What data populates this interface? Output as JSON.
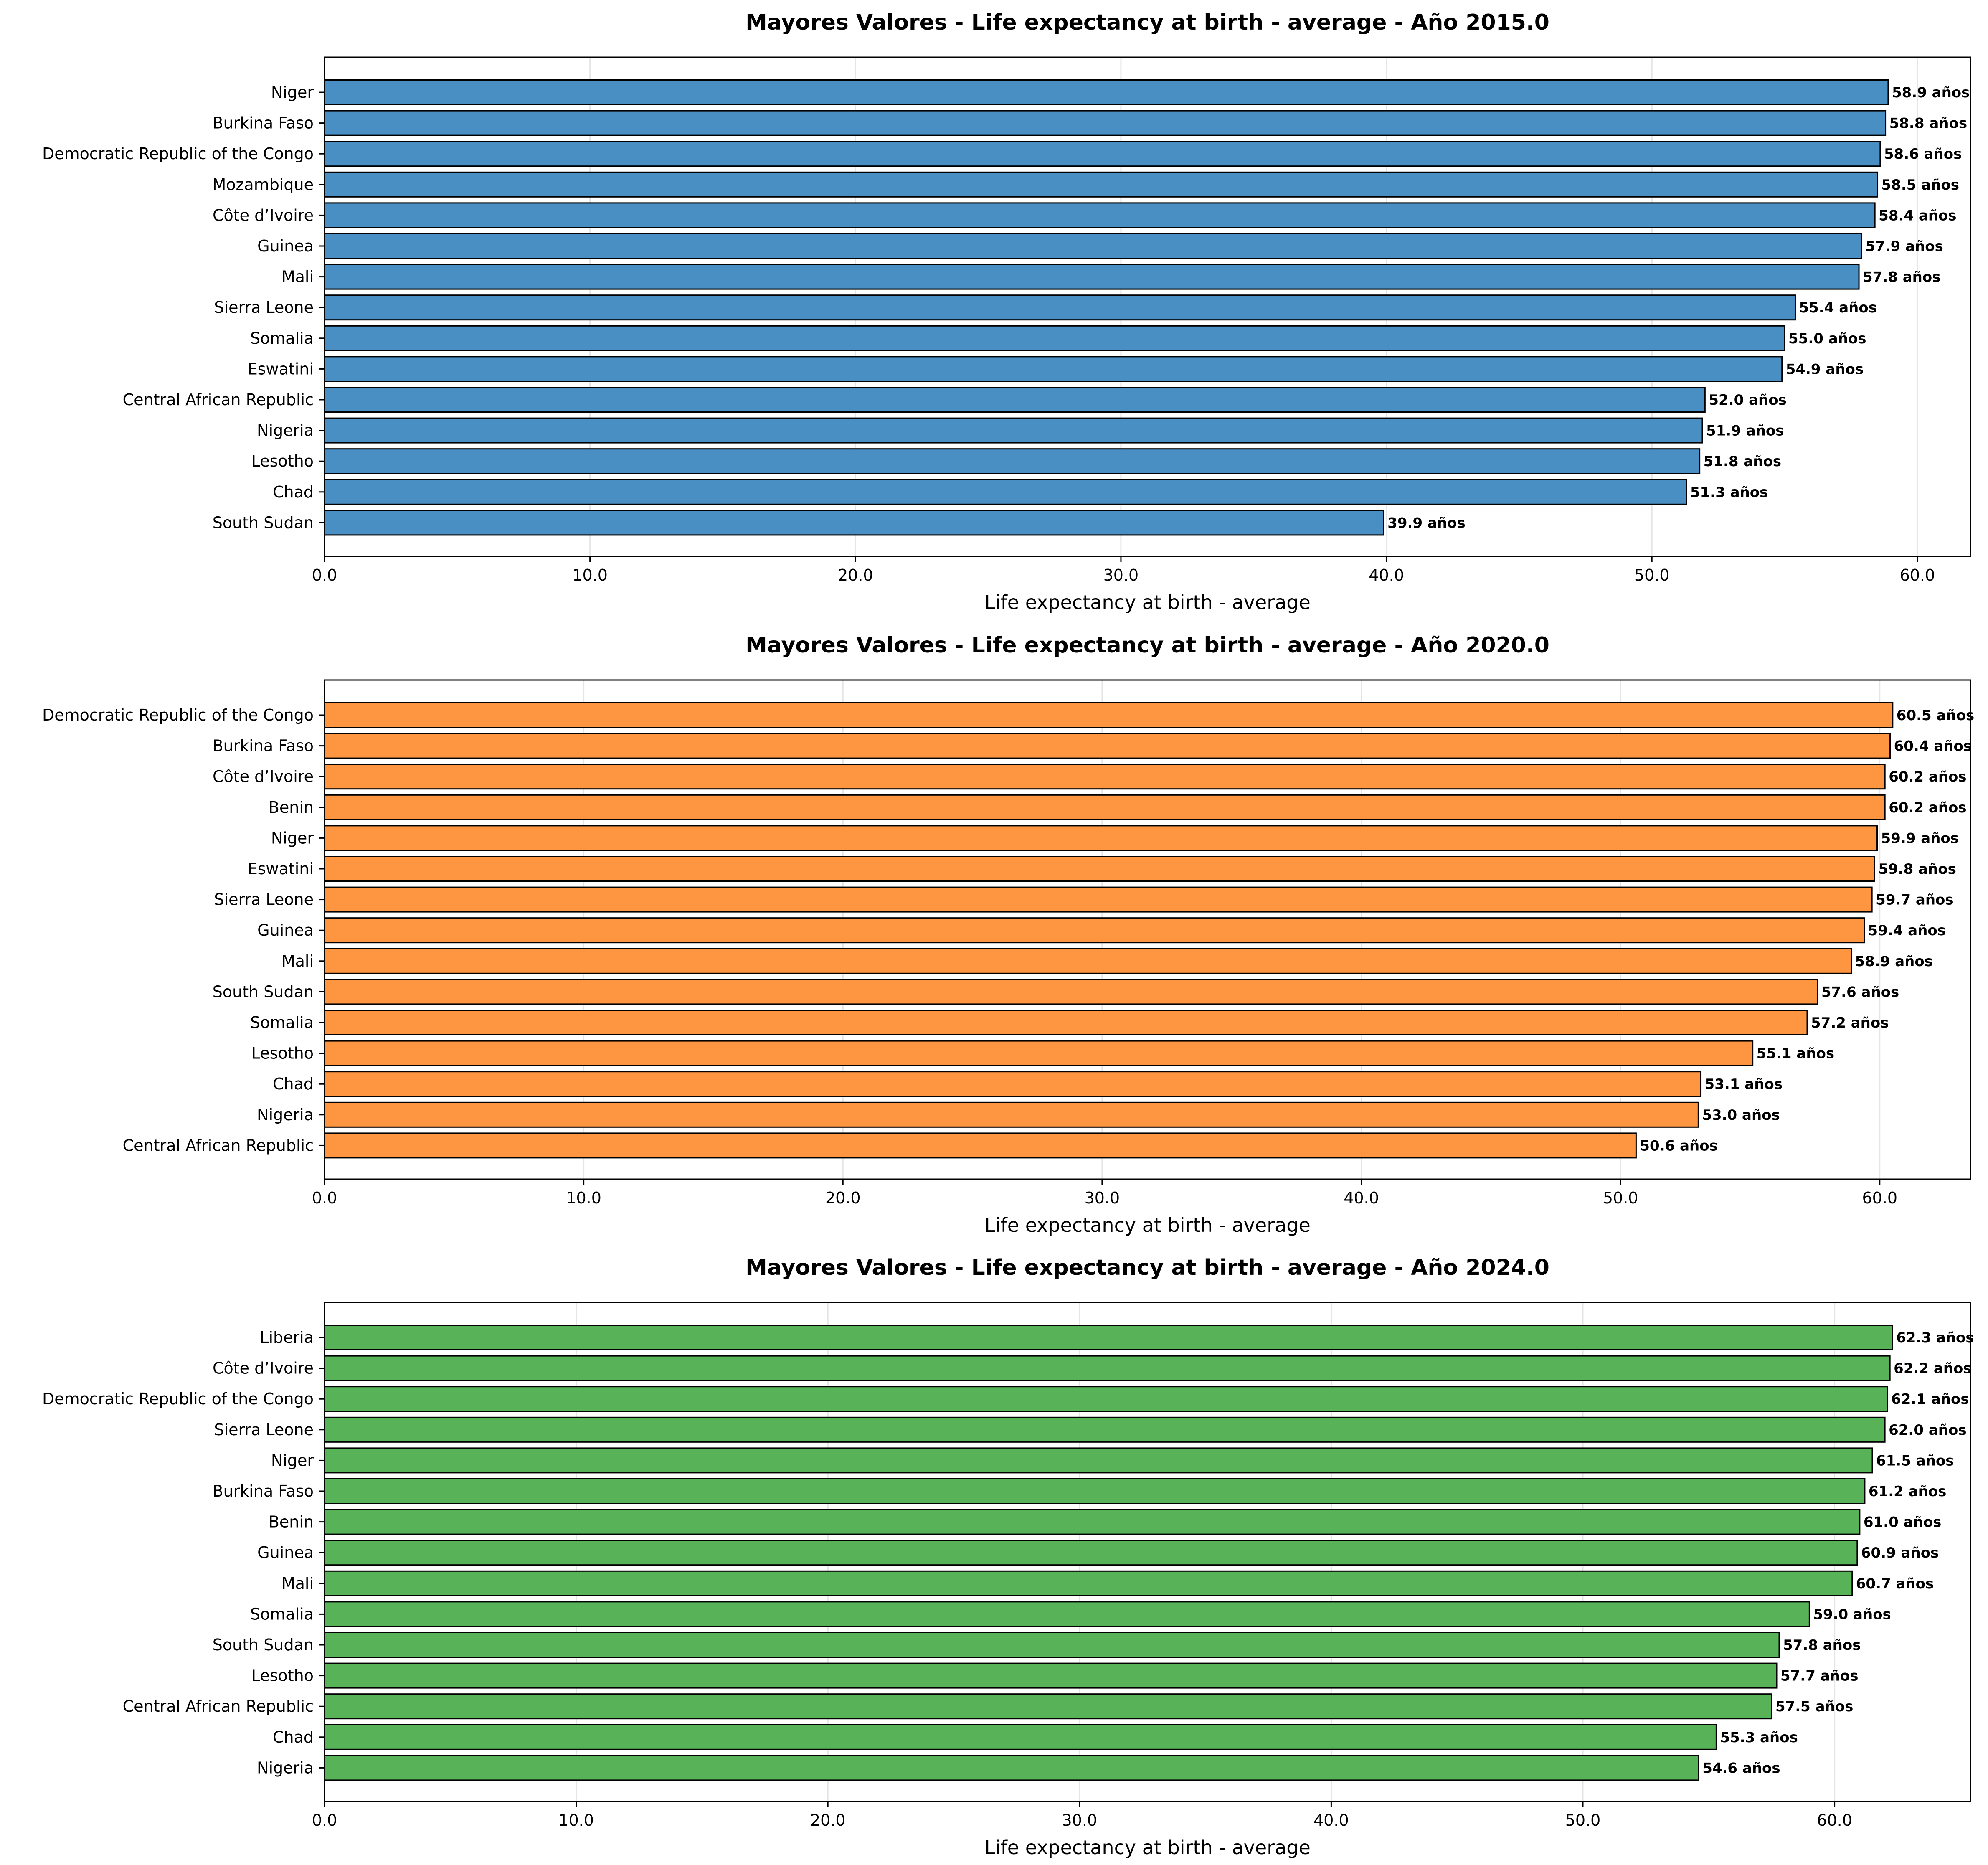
{
  "chart_data": [
    {
      "type": "bar",
      "orientation": "horizontal",
      "title": "Mayores Valores - Life expectancy at birth - average - Año 2015.0",
      "xlabel": "Life expectancy at birth - average",
      "ylabel": "",
      "color": "#4a8fc3",
      "xlim": [
        0,
        62
      ],
      "xticks": [
        "0.0",
        "10.0",
        "20.0",
        "30.0",
        "40.0",
        "50.0",
        "60.0"
      ],
      "grid": "x",
      "categories": [
        "Niger",
        "Burkina Faso",
        "Democratic Republic of the Congo",
        "Mozambique",
        "Côte d’Ivoire",
        "Guinea",
        "Mali",
        "Sierra Leone",
        "Somalia",
        "Eswatini",
        "Central African Republic",
        "Nigeria",
        "Lesotho",
        "Chad",
        "South Sudan"
      ],
      "values": [
        58.9,
        58.8,
        58.6,
        58.5,
        58.4,
        57.9,
        57.8,
        55.4,
        55.0,
        54.9,
        52.0,
        51.9,
        51.8,
        51.3,
        39.9
      ],
      "data_labels": [
        "58.9 años",
        "58.8 años",
        "58.6 años",
        "58.5 años",
        "58.4 años",
        "57.9 años",
        "57.8 años",
        "55.4 años",
        "55.0 años",
        "54.9 años",
        "52.0 años",
        "51.9 años",
        "51.8 años",
        "51.3 años",
        "39.9 años"
      ]
    },
    {
      "type": "bar",
      "orientation": "horizontal",
      "title": "Mayores Valores - Life expectancy at birth - average - Año 2020.0",
      "xlabel": "Life expectancy at birth - average",
      "ylabel": "",
      "color": "#fe9540",
      "xlim": [
        0,
        63.5
      ],
      "xticks": [
        "0.0",
        "10.0",
        "20.0",
        "30.0",
        "40.0",
        "50.0",
        "60.0"
      ],
      "grid": "x",
      "categories": [
        "Democratic Republic of the Congo",
        "Burkina Faso",
        "Côte d’Ivoire",
        "Benin",
        "Niger",
        "Eswatini",
        "Sierra Leone",
        "Guinea",
        "Mali",
        "South Sudan",
        "Somalia",
        "Lesotho",
        "Chad",
        "Nigeria",
        "Central African Republic"
      ],
      "values": [
        60.5,
        60.4,
        60.2,
        60.2,
        59.9,
        59.8,
        59.7,
        59.4,
        58.9,
        57.6,
        57.2,
        55.1,
        53.1,
        53.0,
        50.6
      ],
      "data_labels": [
        "60.5 años",
        "60.4 años",
        "60.2 años",
        "60.2 años",
        "59.9 años",
        "59.8 años",
        "59.7 años",
        "59.4 años",
        "58.9 años",
        "57.6 años",
        "57.2 años",
        "55.1 años",
        "53.1 años",
        "53.0 años",
        "50.6 años"
      ]
    },
    {
      "type": "bar",
      "orientation": "horizontal",
      "title": "Mayores Valores - Life expectancy at birth - average - Año 2024.0",
      "xlabel": "Life expectancy at birth - average",
      "ylabel": "",
      "color": "#58b358",
      "xlim": [
        0,
        65.4
      ],
      "xticks": [
        "0.0",
        "10.0",
        "20.0",
        "30.0",
        "40.0",
        "50.0",
        "60.0"
      ],
      "grid": "x",
      "categories": [
        "Liberia",
        "Côte d’Ivoire",
        "Democratic Republic of the Congo",
        "Sierra Leone",
        "Niger",
        "Burkina Faso",
        "Benin",
        "Guinea",
        "Mali",
        "Somalia",
        "South Sudan",
        "Lesotho",
        "Central African Republic",
        "Chad",
        "Nigeria"
      ],
      "values": [
        62.3,
        62.2,
        62.1,
        62.0,
        61.5,
        61.2,
        61.0,
        60.9,
        60.7,
        59.0,
        57.8,
        57.7,
        57.5,
        55.3,
        54.6
      ],
      "data_labels": [
        "62.3 años",
        "62.2 años",
        "62.1 años",
        "62.0 años",
        "61.5 años",
        "61.2 años",
        "61.0 años",
        "60.9 años",
        "60.7 años",
        "59.0 años",
        "57.8 años",
        "57.7 años",
        "57.5 años",
        "55.3 años",
        "54.6 años"
      ]
    }
  ]
}
